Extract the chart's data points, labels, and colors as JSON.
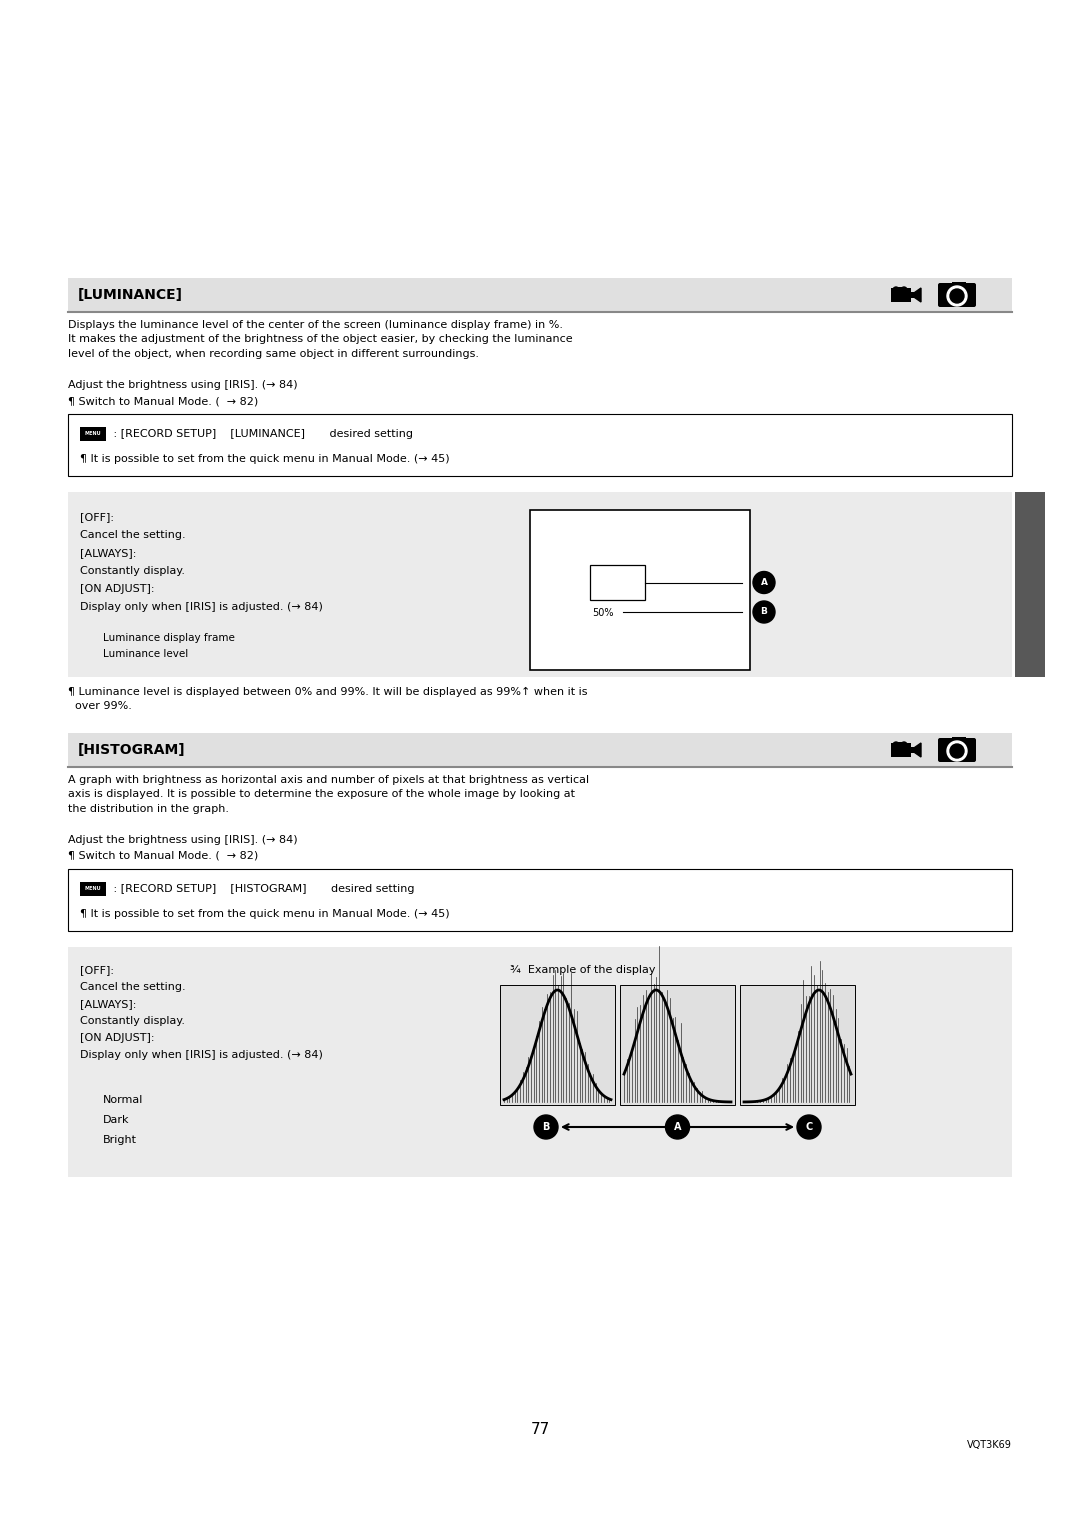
{
  "bg_color": "#ffffff",
  "body_font_size": 8.0,
  "header_font_size": 10.0,
  "small_font_size": 7.0,
  "lum_header_text": "[LUMINANCE]",
  "lum_header_bg": "#e0e0e0",
  "hist_header_text": "[HISTOGRAM]",
  "hist_header_bg": "#e0e0e0",
  "lum_box_text1": " : [RECORD SETUP]    [LUMINANCE]       desired setting",
  "lum_box_text2": "¶ It is possible to set from the quick menu in Manual Mode. (→ 45)",
  "hist_box_text1": " : [RECORD SETUP]    [HISTOGRAM]       desired setting",
  "hist_box_text2": "¶ It is possible to set from the quick menu in Manual Mode. (→ 45)",
  "lum_desc": "Displays the luminance level of the center of the screen (luminance display frame) in %.\nIt makes the adjustment of the brightness of the object easier, by checking the luminance\nlevel of the object, when recording same object in different surroundings.",
  "lum_adjust": "Adjust the brightness using [IRIS]. (→ 84)",
  "lum_switch": "¶ Switch to Manual Mode. (  → 82)",
  "hist_desc": "A graph with brightness as horizontal axis and number of pixels at that brightness as vertical\naxis is displayed. It is possible to determine the exposure of the whole image by looking at\nthe distribution in the graph.",
  "hist_adjust": "Adjust the brightness using [IRIS]. (→ 84)",
  "hist_switch": "¶ Switch to Manual Mode. (  → 82)",
  "footer_page": "77",
  "footer_code": "VQT3K69",
  "gray_bg": "#ebebeb",
  "sidebar_color": "#585858"
}
